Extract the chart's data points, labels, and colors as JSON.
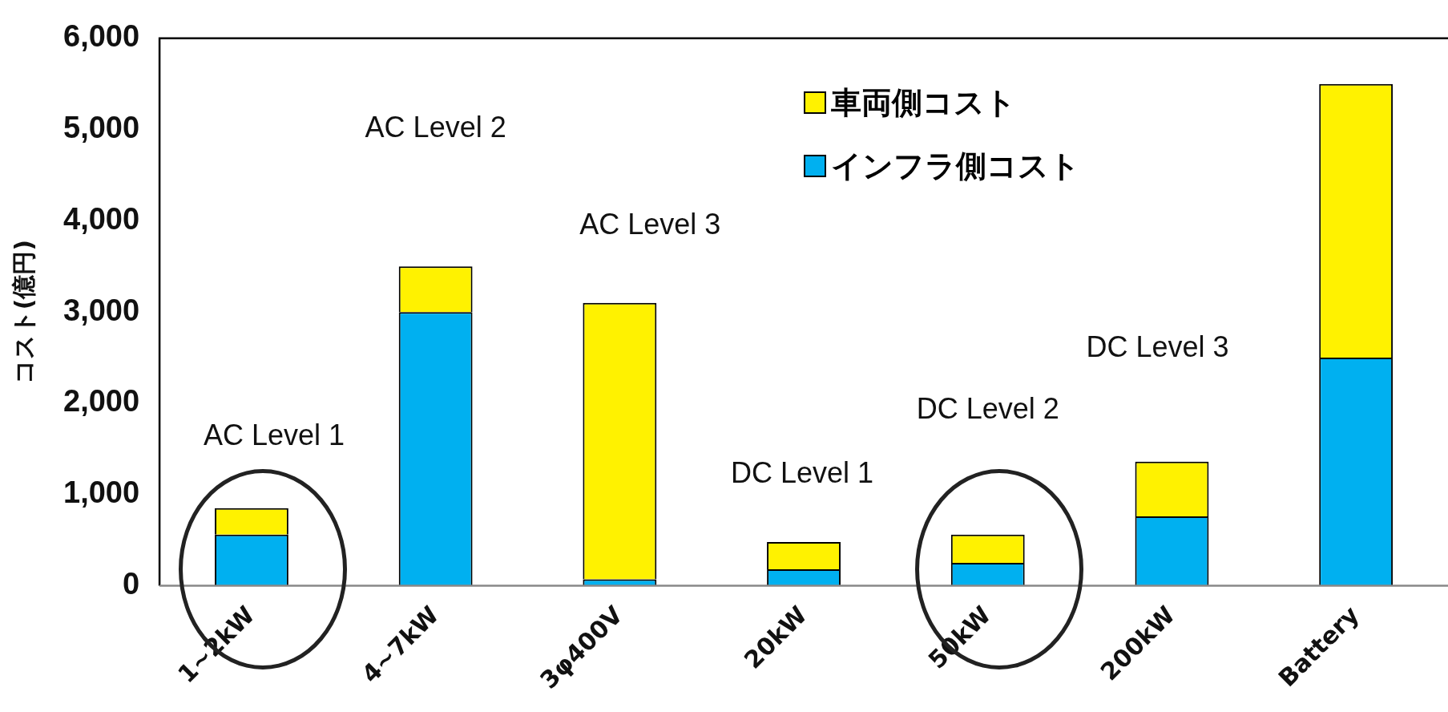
{
  "chart_data": {
    "type": "bar",
    "stacked": true,
    "ylabel": "コスト(億円)",
    "categories": [
      "1~2kW",
      "4~7kW",
      "3φ400V",
      "20kW",
      "50kW",
      "200kW",
      "Battery"
    ],
    "series": [
      {
        "name": "インフラ側コスト",
        "color": "#00b0f0",
        "values": [
          560,
          3000,
          70,
          180,
          250,
          760,
          2500
        ]
      },
      {
        "name": "車両側コスト",
        "color": "#fff200",
        "values": [
          290,
          500,
          3030,
          300,
          310,
          600,
          3000
        ]
      }
    ],
    "ylim": [
      0,
      6000
    ],
    "yticks": [
      {
        "value": 0,
        "label": "0"
      },
      {
        "value": 1000,
        "label": "1,000"
      },
      {
        "value": 2000,
        "label": "2,000"
      },
      {
        "value": 3000,
        "label": "3,000"
      },
      {
        "value": 4000,
        "label": "4,000"
      },
      {
        "value": 5000,
        "label": "5,000"
      },
      {
        "value": 6000,
        "label": "6,000"
      }
    ],
    "grid": false,
    "legend": "top right",
    "annotations": [
      "AC Level 1",
      "AC Level 2",
      "AC Level 3",
      "DC Level 1",
      "DC Level 2",
      "DC Level 3"
    ]
  }
}
